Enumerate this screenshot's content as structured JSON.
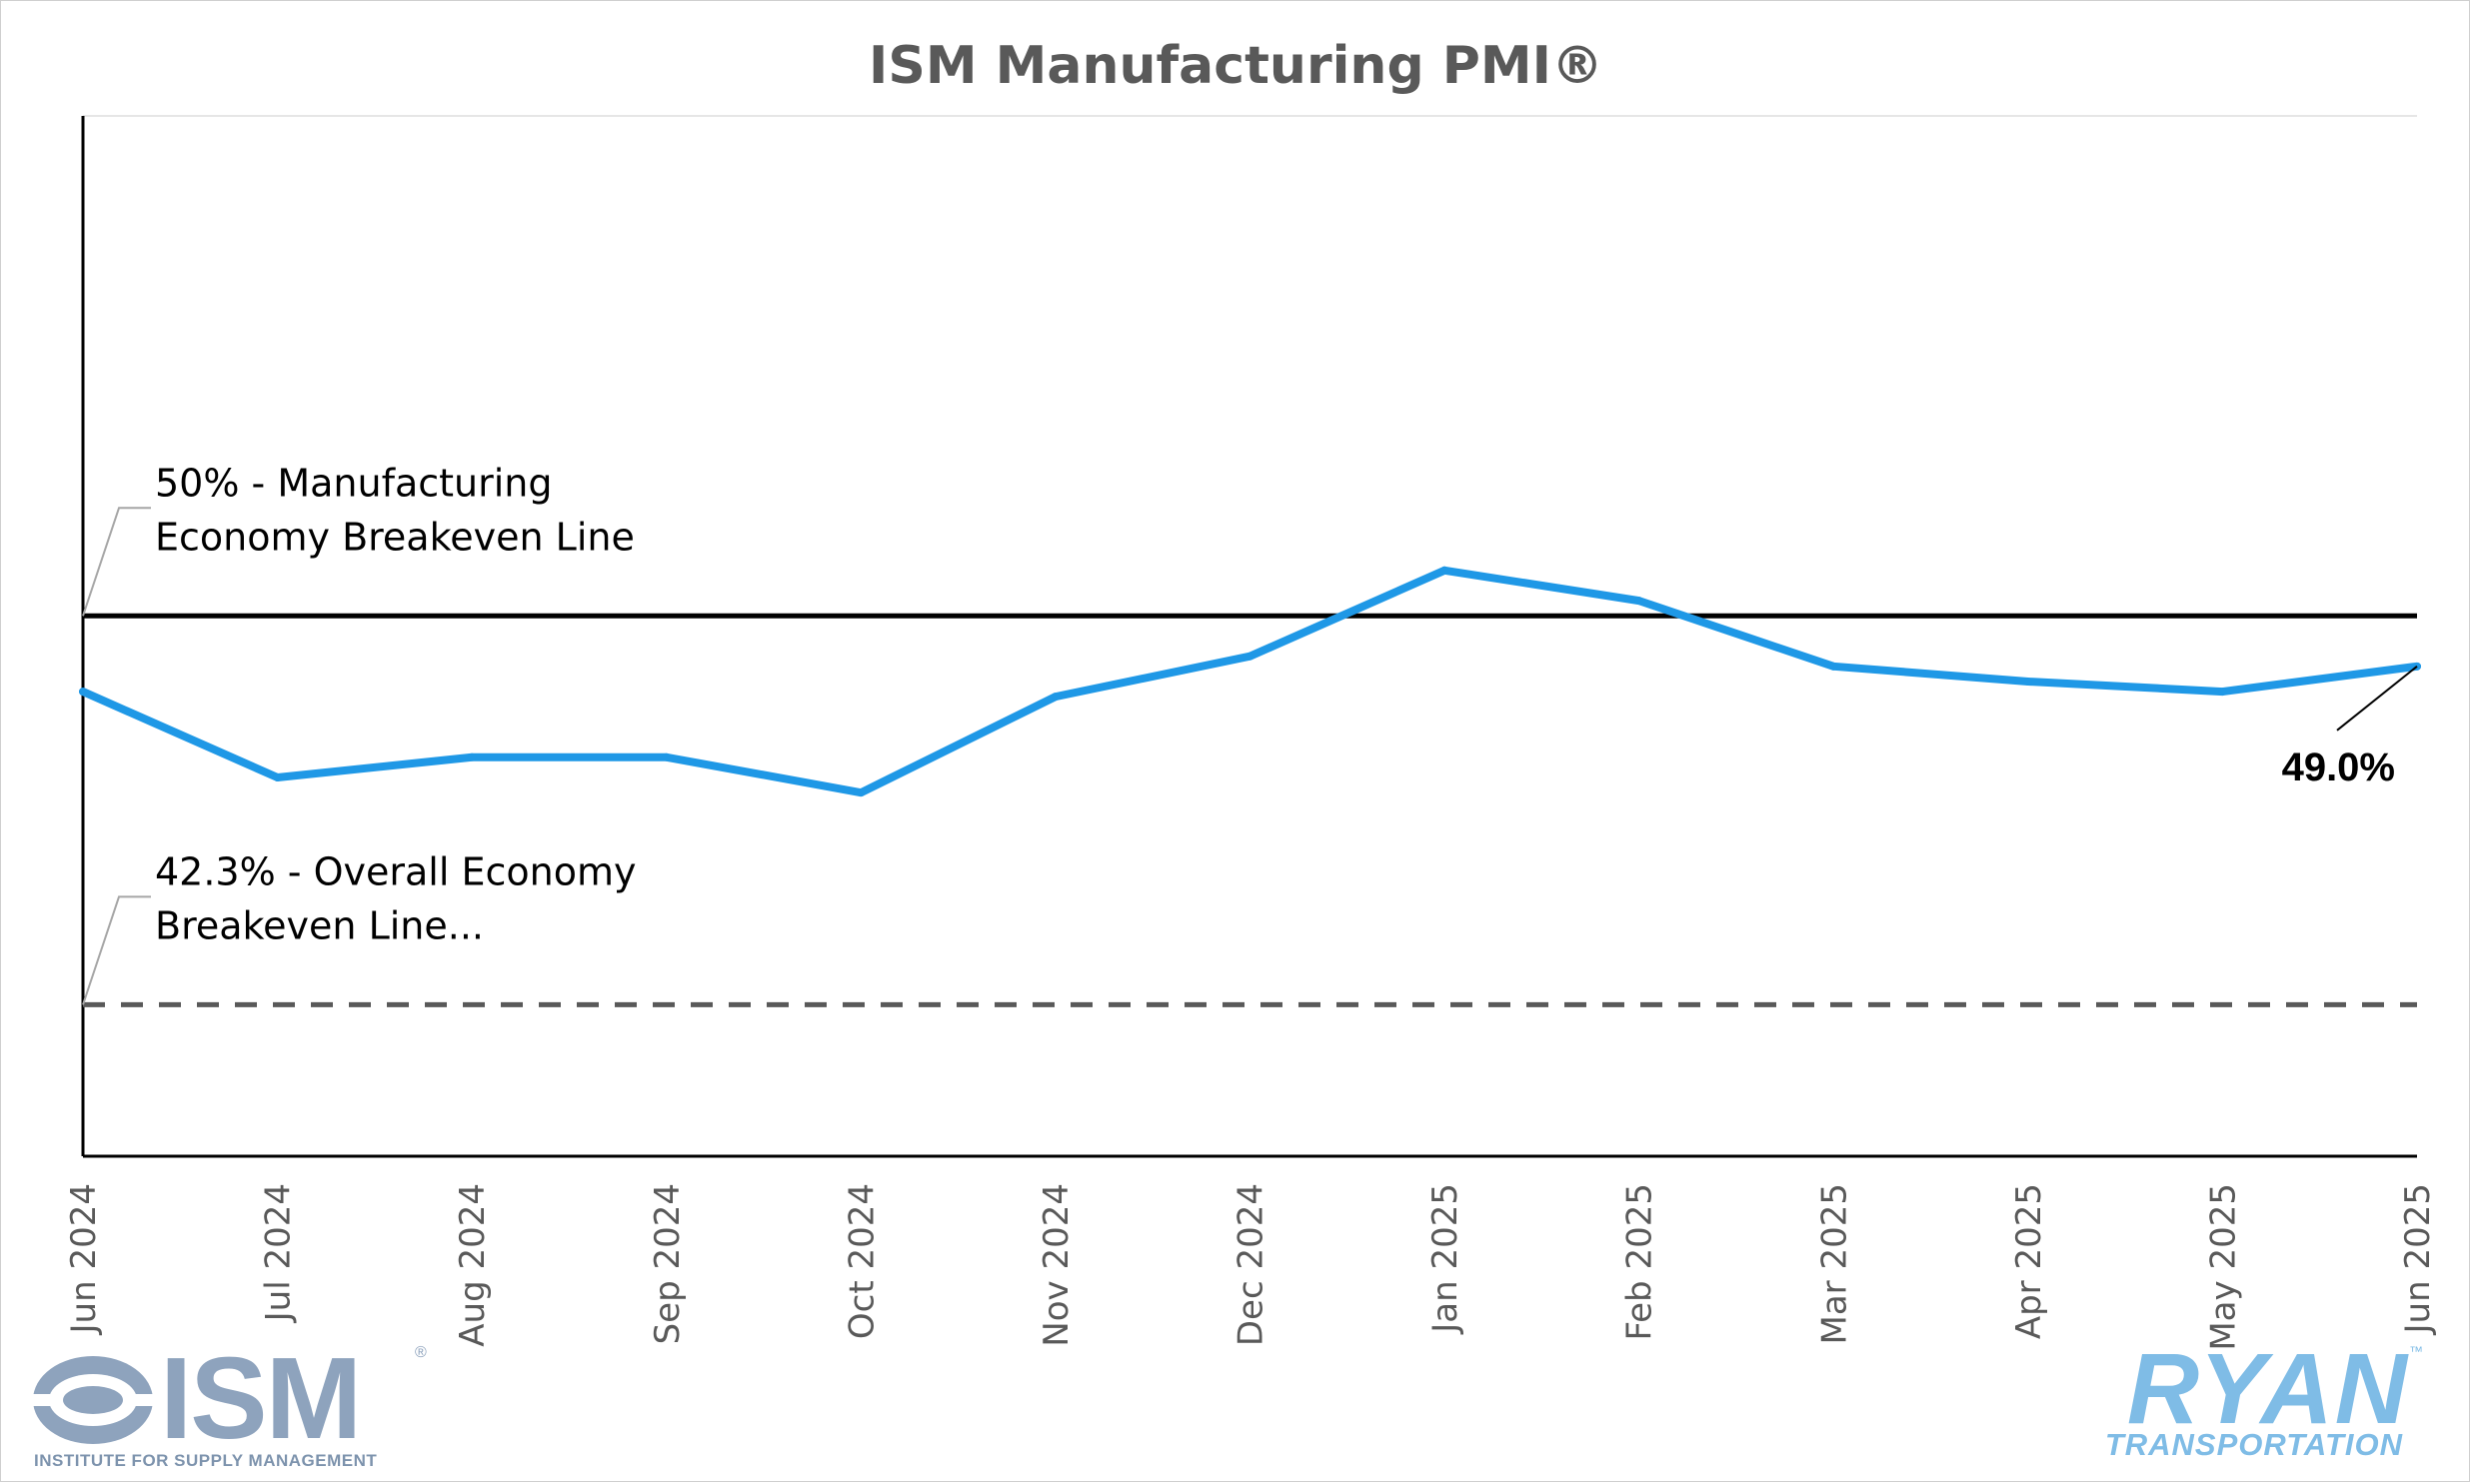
{
  "chart_data": {
    "type": "line",
    "title": "ISM Manufacturing PMI®",
    "categories": [
      "Jun 2024",
      "Jul 2024",
      "Aug 2024",
      "Sep 2024",
      "Oct 2024",
      "Nov 2024",
      "Dec 2024",
      "Jan 2025",
      "Feb 2025",
      "Mar 2025",
      "Apr 2025",
      "May 2025",
      "Jun 2025"
    ],
    "series": [
      {
        "values": [
          48.5,
          46.8,
          47.2,
          47.2,
          46.5,
          48.4,
          49.2,
          50.9,
          50.3,
          49.0,
          48.7,
          48.5,
          49.0
        ],
        "color": "#1f98e6"
      }
    ],
    "reference_lines": [
      {
        "value": 50.0,
        "label": "50% - Manufacturing Economy Breakeven Line",
        "label_lines": [
          "50% - Manufacturing",
          "Economy Breakeven Line"
        ],
        "style": "solid",
        "color": "#000000"
      },
      {
        "value": 42.3,
        "label": "42.3% - Overall Economy Breakeven Line...",
        "label_lines": [
          "42.3% - Overall Economy",
          "Breakeven Line..."
        ],
        "style": "dashed",
        "color": "#595959"
      }
    ],
    "end_label": "49.0%",
    "ylim": [
      39.3,
      59.9
    ],
    "xlabel": "",
    "ylabel": "",
    "grid": false,
    "legend": "none"
  },
  "logos": {
    "ism": {
      "word": "ISM",
      "registered": "®",
      "subtitle": "INSTITUTE FOR SUPPLY MANAGEMENT",
      "color": "#8ea3bd"
    },
    "ryan": {
      "word": "RYAN",
      "trademark": "™",
      "subtitle": "TRANSPORTATION",
      "color": "#7fbce6"
    }
  }
}
